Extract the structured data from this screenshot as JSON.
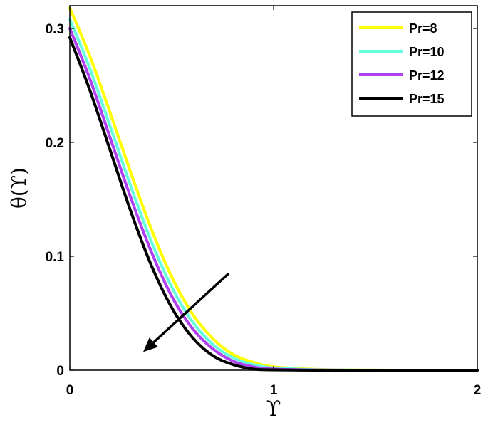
{
  "chart_data": {
    "type": "line",
    "title": "",
    "xlabel": "ϒ",
    "ylabel": "θ(ϒ)",
    "xlim": [
      0,
      2
    ],
    "ylim": [
      0,
      0.32
    ],
    "xticks": [
      0,
      1,
      2
    ],
    "xtick_labels": [
      "0",
      "1",
      "2"
    ],
    "yticks": [
      0,
      0.1,
      0.2,
      0.3
    ],
    "ytick_labels": [
      "0",
      "0.1",
      "0.2",
      "0.3"
    ],
    "grid": false,
    "legend_position": "top-right",
    "series": [
      {
        "name": "Pr=8",
        "color": "#ffff00",
        "x": [
          0,
          0.1,
          0.2,
          0.3,
          0.4,
          0.5,
          0.6,
          0.7,
          0.8,
          0.9,
          1.0,
          1.2,
          1.4,
          1.6,
          1.8,
          2.0
        ],
        "y": [
          0.318,
          0.275,
          0.225,
          0.173,
          0.124,
          0.082,
          0.05,
          0.028,
          0.014,
          0.007,
          0.003,
          0.0008,
          0.0002,
          0.0,
          0.0,
          0.0
        ]
      },
      {
        "name": "Pr=10",
        "color": "#66ffdd",
        "x": [
          0,
          0.1,
          0.2,
          0.3,
          0.4,
          0.5,
          0.6,
          0.7,
          0.8,
          0.9,
          1.0,
          1.2,
          1.4,
          1.6,
          1.8,
          2.0
        ],
        "y": [
          0.308,
          0.264,
          0.213,
          0.161,
          0.113,
          0.073,
          0.043,
          0.023,
          0.011,
          0.005,
          0.002,
          0.0005,
          0.0001,
          0.0,
          0.0,
          0.0
        ]
      },
      {
        "name": "Pr=12",
        "color": "#b040f0",
        "x": [
          0,
          0.1,
          0.2,
          0.3,
          0.4,
          0.5,
          0.6,
          0.7,
          0.8,
          0.9,
          1.0,
          1.2,
          1.4,
          1.6,
          1.8,
          2.0
        ],
        "y": [
          0.3,
          0.255,
          0.203,
          0.151,
          0.104,
          0.065,
          0.037,
          0.019,
          0.008,
          0.003,
          0.001,
          0.0002,
          0.0,
          0.0,
          0.0,
          0.0
        ]
      },
      {
        "name": "Pr=15",
        "color": "#000000",
        "x": [
          0,
          0.1,
          0.2,
          0.3,
          0.4,
          0.5,
          0.6,
          0.7,
          0.8,
          0.9,
          1.0,
          1.2,
          1.4,
          1.6,
          1.8,
          2.0
        ],
        "y": [
          0.292,
          0.245,
          0.192,
          0.139,
          0.092,
          0.055,
          0.029,
          0.013,
          0.005,
          0.001,
          0.0003,
          0.0,
          0.0,
          0.0,
          0.0,
          0.0
        ]
      }
    ],
    "annotations": [
      {
        "type": "arrow",
        "from": [
          0.78,
          0.085
        ],
        "to": [
          0.36,
          0.016
        ]
      }
    ]
  }
}
